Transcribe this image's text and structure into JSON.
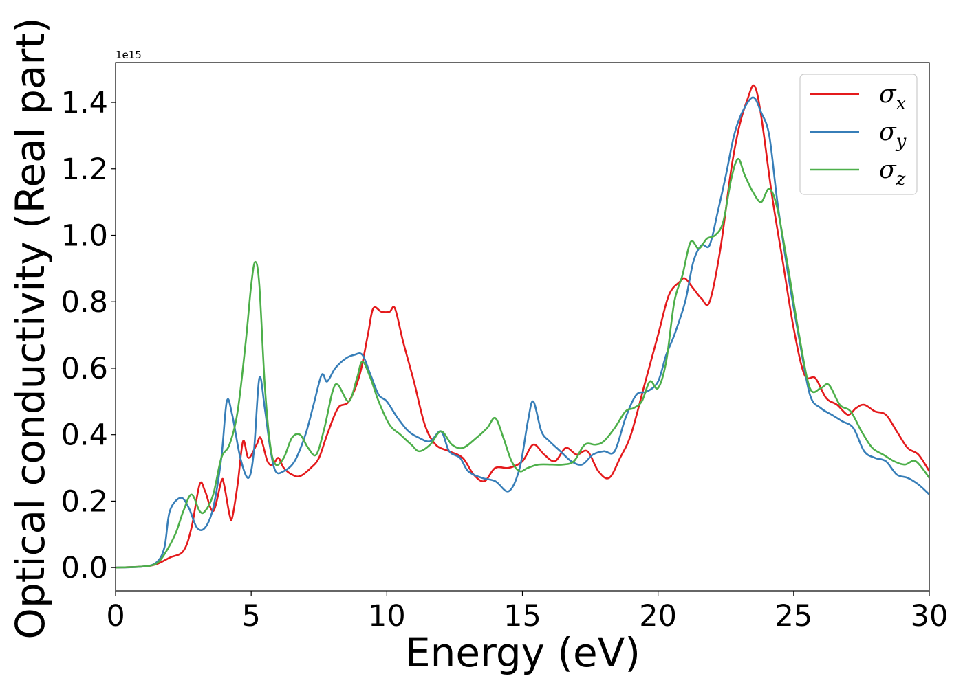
{
  "chart_data": {
    "type": "line",
    "xlabel": "Energy (eV)",
    "ylabel": "Optical conductivity (Real part)",
    "y_offset_label": "1e15",
    "xlim": [
      0,
      30
    ],
    "ylim": [
      -0.07,
      1.52
    ],
    "x_ticks": [
      0,
      5,
      10,
      15,
      20,
      25,
      30
    ],
    "x_tick_labels": [
      "0",
      "5",
      "10",
      "15",
      "20",
      "25",
      "30"
    ],
    "y_ticks": [
      0.0,
      0.2,
      0.4,
      0.6,
      0.8,
      1.0,
      1.2,
      1.4
    ],
    "y_tick_labels": [
      "0.0",
      "0.2",
      "0.4",
      "0.6",
      "0.8",
      "1.0",
      "1.2",
      "1.4"
    ],
    "grid": false,
    "legend": {
      "position": "top-right",
      "entries": [
        {
          "base": "σ",
          "sub": "x"
        },
        {
          "base": "σ",
          "sub": "y"
        },
        {
          "base": "σ",
          "sub": "z"
        }
      ]
    },
    "series": [
      {
        "color": "#e41a1c",
        "points": [
          [
            0,
            0
          ],
          [
            1,
            0.003
          ],
          [
            1.5,
            0.01
          ],
          [
            2,
            0.03
          ],
          [
            2.5,
            0.05
          ],
          [
            2.8,
            0.12
          ],
          [
            3.1,
            0.25
          ],
          [
            3.3,
            0.23
          ],
          [
            3.6,
            0.17
          ],
          [
            3.9,
            0.26
          ],
          [
            4.0,
            0.25
          ],
          [
            4.2,
            0.16
          ],
          [
            4.3,
            0.15
          ],
          [
            4.5,
            0.25
          ],
          [
            4.7,
            0.38
          ],
          [
            4.9,
            0.33
          ],
          [
            5.2,
            0.37
          ],
          [
            5.35,
            0.39
          ],
          [
            5.6,
            0.32
          ],
          [
            5.8,
            0.31
          ],
          [
            6.0,
            0.33
          ],
          [
            6.2,
            0.3
          ],
          [
            6.5,
            0.28
          ],
          [
            6.8,
            0.275
          ],
          [
            7.2,
            0.3
          ],
          [
            7.5,
            0.33
          ],
          [
            7.8,
            0.4
          ],
          [
            8.2,
            0.48
          ],
          [
            8.6,
            0.5
          ],
          [
            9.0,
            0.58
          ],
          [
            9.3,
            0.7
          ],
          [
            9.5,
            0.78
          ],
          [
            9.8,
            0.77
          ],
          [
            10.1,
            0.77
          ],
          [
            10.3,
            0.78
          ],
          [
            10.6,
            0.68
          ],
          [
            11.0,
            0.56
          ],
          [
            11.4,
            0.43
          ],
          [
            11.8,
            0.37
          ],
          [
            12.3,
            0.35
          ],
          [
            12.8,
            0.33
          ],
          [
            13.2,
            0.28
          ],
          [
            13.6,
            0.26
          ],
          [
            14.0,
            0.3
          ],
          [
            14.5,
            0.3
          ],
          [
            15.0,
            0.32
          ],
          [
            15.4,
            0.37
          ],
          [
            15.8,
            0.34
          ],
          [
            16.2,
            0.32
          ],
          [
            16.6,
            0.36
          ],
          [
            17.0,
            0.34
          ],
          [
            17.4,
            0.35
          ],
          [
            17.8,
            0.29
          ],
          [
            18.2,
            0.27
          ],
          [
            18.6,
            0.33
          ],
          [
            19.0,
            0.4
          ],
          [
            19.5,
            0.55
          ],
          [
            20.0,
            0.7
          ],
          [
            20.4,
            0.82
          ],
          [
            20.8,
            0.86
          ],
          [
            21.0,
            0.87
          ],
          [
            21.3,
            0.84
          ],
          [
            21.6,
            0.81
          ],
          [
            21.9,
            0.8
          ],
          [
            22.3,
            0.96
          ],
          [
            22.7,
            1.2
          ],
          [
            23.0,
            1.33
          ],
          [
            23.3,
            1.41
          ],
          [
            23.55,
            1.45
          ],
          [
            23.8,
            1.36
          ],
          [
            24.2,
            1.12
          ],
          [
            24.6,
            0.92
          ],
          [
            25.0,
            0.72
          ],
          [
            25.4,
            0.58
          ],
          [
            25.8,
            0.57
          ],
          [
            26.2,
            0.51
          ],
          [
            26.6,
            0.49
          ],
          [
            27.0,
            0.46
          ],
          [
            27.3,
            0.48
          ],
          [
            27.6,
            0.49
          ],
          [
            28.0,
            0.47
          ],
          [
            28.4,
            0.46
          ],
          [
            28.8,
            0.41
          ],
          [
            29.2,
            0.36
          ],
          [
            29.6,
            0.34
          ],
          [
            30.0,
            0.29
          ]
        ]
      },
      {
        "color": "#377eb8",
        "points": [
          [
            0,
            0
          ],
          [
            1,
            0.003
          ],
          [
            1.5,
            0.015
          ],
          [
            1.8,
            0.06
          ],
          [
            2.0,
            0.17
          ],
          [
            2.4,
            0.21
          ],
          [
            2.7,
            0.18
          ],
          [
            3.0,
            0.12
          ],
          [
            3.3,
            0.12
          ],
          [
            3.6,
            0.18
          ],
          [
            3.9,
            0.33
          ],
          [
            4.1,
            0.5
          ],
          [
            4.3,
            0.46
          ],
          [
            4.6,
            0.33
          ],
          [
            4.9,
            0.27
          ],
          [
            5.1,
            0.35
          ],
          [
            5.3,
            0.57
          ],
          [
            5.5,
            0.48
          ],
          [
            5.7,
            0.36
          ],
          [
            5.9,
            0.29
          ],
          [
            6.2,
            0.29
          ],
          [
            6.6,
            0.32
          ],
          [
            7.0,
            0.4
          ],
          [
            7.3,
            0.49
          ],
          [
            7.6,
            0.58
          ],
          [
            7.8,
            0.56
          ],
          [
            8.1,
            0.6
          ],
          [
            8.5,
            0.63
          ],
          [
            8.8,
            0.64
          ],
          [
            9.1,
            0.64
          ],
          [
            9.4,
            0.58
          ],
          [
            9.7,
            0.52
          ],
          [
            10.0,
            0.5
          ],
          [
            10.4,
            0.45
          ],
          [
            10.8,
            0.41
          ],
          [
            11.2,
            0.39
          ],
          [
            11.6,
            0.38
          ],
          [
            12.0,
            0.41
          ],
          [
            12.3,
            0.35
          ],
          [
            12.7,
            0.33
          ],
          [
            13.0,
            0.29
          ],
          [
            13.5,
            0.27
          ],
          [
            14.0,
            0.26
          ],
          [
            14.5,
            0.23
          ],
          [
            14.9,
            0.3
          ],
          [
            15.2,
            0.44
          ],
          [
            15.4,
            0.5
          ],
          [
            15.7,
            0.41
          ],
          [
            16.0,
            0.38
          ],
          [
            16.4,
            0.35
          ],
          [
            16.8,
            0.32
          ],
          [
            17.2,
            0.31
          ],
          [
            17.6,
            0.34
          ],
          [
            18.0,
            0.35
          ],
          [
            18.4,
            0.35
          ],
          [
            18.8,
            0.45
          ],
          [
            19.2,
            0.52
          ],
          [
            19.6,
            0.53
          ],
          [
            20.0,
            0.56
          ],
          [
            20.3,
            0.64
          ],
          [
            20.6,
            0.7
          ],
          [
            21.0,
            0.8
          ],
          [
            21.3,
            0.92
          ],
          [
            21.6,
            0.97
          ],
          [
            21.9,
            0.97
          ],
          [
            22.2,
            1.07
          ],
          [
            22.5,
            1.18
          ],
          [
            22.8,
            1.3
          ],
          [
            23.1,
            1.37
          ],
          [
            23.5,
            1.415
          ],
          [
            23.8,
            1.37
          ],
          [
            24.1,
            1.3
          ],
          [
            24.4,
            1.1
          ],
          [
            24.8,
            0.88
          ],
          [
            25.2,
            0.69
          ],
          [
            25.6,
            0.52
          ],
          [
            26.0,
            0.48
          ],
          [
            26.4,
            0.46
          ],
          [
            26.8,
            0.44
          ],
          [
            27.2,
            0.42
          ],
          [
            27.6,
            0.35
          ],
          [
            28.0,
            0.33
          ],
          [
            28.4,
            0.32
          ],
          [
            28.8,
            0.28
          ],
          [
            29.2,
            0.27
          ],
          [
            29.6,
            0.25
          ],
          [
            30.0,
            0.22
          ]
        ]
      },
      {
        "color": "#4daf4a",
        "points": [
          [
            0,
            0
          ],
          [
            1,
            0.003
          ],
          [
            1.5,
            0.012
          ],
          [
            1.8,
            0.04
          ],
          [
            2.2,
            0.1
          ],
          [
            2.5,
            0.17
          ],
          [
            2.8,
            0.22
          ],
          [
            3.1,
            0.17
          ],
          [
            3.3,
            0.17
          ],
          [
            3.6,
            0.22
          ],
          [
            3.9,
            0.33
          ],
          [
            4.2,
            0.37
          ],
          [
            4.5,
            0.47
          ],
          [
            4.8,
            0.68
          ],
          [
            5.0,
            0.85
          ],
          [
            5.15,
            0.92
          ],
          [
            5.3,
            0.85
          ],
          [
            5.5,
            0.55
          ],
          [
            5.7,
            0.37
          ],
          [
            5.9,
            0.31
          ],
          [
            6.2,
            0.33
          ],
          [
            6.5,
            0.39
          ],
          [
            6.8,
            0.4
          ],
          [
            7.1,
            0.36
          ],
          [
            7.4,
            0.34
          ],
          [
            7.7,
            0.42
          ],
          [
            8.0,
            0.53
          ],
          [
            8.2,
            0.55
          ],
          [
            8.6,
            0.5
          ],
          [
            8.9,
            0.57
          ],
          [
            9.1,
            0.62
          ],
          [
            9.4,
            0.57
          ],
          [
            9.7,
            0.5
          ],
          [
            10.1,
            0.43
          ],
          [
            10.5,
            0.4
          ],
          [
            10.9,
            0.37
          ],
          [
            11.2,
            0.35
          ],
          [
            11.6,
            0.37
          ],
          [
            12.0,
            0.41
          ],
          [
            12.4,
            0.37
          ],
          [
            12.8,
            0.36
          ],
          [
            13.3,
            0.39
          ],
          [
            13.7,
            0.42
          ],
          [
            14.0,
            0.45
          ],
          [
            14.3,
            0.39
          ],
          [
            14.6,
            0.32
          ],
          [
            14.9,
            0.29
          ],
          [
            15.2,
            0.3
          ],
          [
            15.6,
            0.31
          ],
          [
            16.1,
            0.31
          ],
          [
            16.5,
            0.31
          ],
          [
            16.9,
            0.32
          ],
          [
            17.3,
            0.37
          ],
          [
            17.7,
            0.37
          ],
          [
            18.0,
            0.38
          ],
          [
            18.4,
            0.42
          ],
          [
            18.8,
            0.47
          ],
          [
            19.1,
            0.48
          ],
          [
            19.4,
            0.5
          ],
          [
            19.7,
            0.56
          ],
          [
            20.0,
            0.54
          ],
          [
            20.3,
            0.62
          ],
          [
            20.6,
            0.8
          ],
          [
            20.9,
            0.88
          ],
          [
            21.2,
            0.98
          ],
          [
            21.5,
            0.96
          ],
          [
            21.8,
            0.99
          ],
          [
            22.1,
            1.0
          ],
          [
            22.4,
            1.04
          ],
          [
            22.7,
            1.17
          ],
          [
            22.95,
            1.23
          ],
          [
            23.2,
            1.18
          ],
          [
            23.5,
            1.13
          ],
          [
            23.8,
            1.1
          ],
          [
            24.1,
            1.14
          ],
          [
            24.4,
            1.08
          ],
          [
            24.8,
            0.9
          ],
          [
            25.2,
            0.7
          ],
          [
            25.6,
            0.54
          ],
          [
            26.0,
            0.54
          ],
          [
            26.3,
            0.55
          ],
          [
            26.7,
            0.49
          ],
          [
            27.1,
            0.47
          ],
          [
            27.5,
            0.41
          ],
          [
            27.9,
            0.36
          ],
          [
            28.3,
            0.34
          ],
          [
            28.7,
            0.32
          ],
          [
            29.1,
            0.31
          ],
          [
            29.5,
            0.32
          ],
          [
            30.0,
            0.27
          ]
        ]
      }
    ]
  }
}
